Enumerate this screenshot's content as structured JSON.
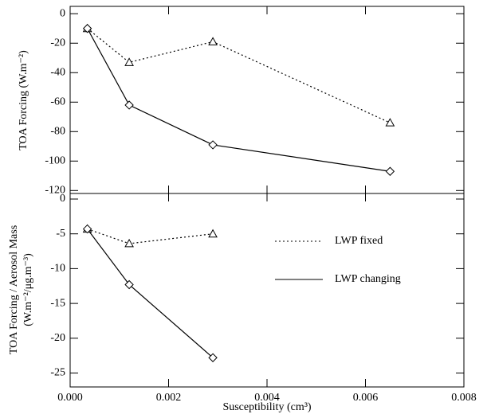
{
  "chart_data": [
    {
      "type": "line",
      "ylabel": "TOA Forcing (W.m⁻²)",
      "x": [
        0.00035,
        0.0012,
        0.0029,
        0.0065
      ],
      "series": [
        {
          "color": "#000000",
          "dash": "dotted",
          "marker": "triangle",
          "values": [
            -10,
            -33,
            -19,
            -74
          ]
        },
        {
          "color": "#000000",
          "dash": "solid",
          "marker": "diamond",
          "values": [
            -10,
            -62,
            -89,
            -107
          ]
        }
      ],
      "xlim": [
        0,
        0.008
      ],
      "xticks": [
        0,
        0.002,
        0.004,
        0.006,
        0.008
      ],
      "ylim": [
        -122,
        5
      ],
      "yticks": [
        0,
        -20,
        -40,
        -60,
        -80,
        -100,
        -120
      ]
    },
    {
      "type": "line",
      "ylabel": [
        "TOA Forcing / Aerosol Mass",
        "(W.m⁻²/μg.m⁻³)"
      ],
      "xlabel": "Susceptibility (cm³)",
      "x": [
        0.00035,
        0.0012,
        0.0029
      ],
      "series": [
        {
          "name": "LWP fixed",
          "color": "#000000",
          "dash": "dotted",
          "marker": "triangle",
          "values": [
            -4.3,
            -6.4,
            -5.0
          ]
        },
        {
          "name": "LWP changing",
          "color": "#000000",
          "dash": "solid",
          "marker": "diamond",
          "values": [
            -4.3,
            -12.3,
            -22.8
          ]
        }
      ],
      "xlim": [
        0,
        0.008
      ],
      "xticks": [
        {
          "value": 0,
          "label": "0.000"
        },
        0.002,
        0.004,
        0.006,
        0.008
      ],
      "ylim": [
        -27,
        0.8
      ],
      "yticks": [
        0,
        -5,
        -10,
        -15,
        -20,
        -25
      ],
      "legend": "right"
    }
  ]
}
